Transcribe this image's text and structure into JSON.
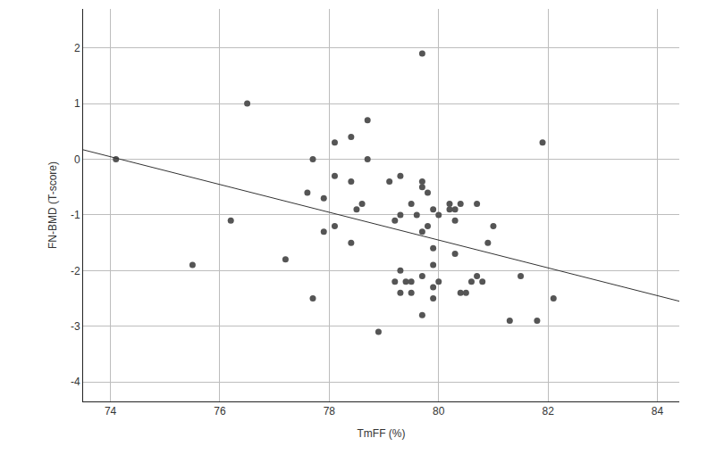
{
  "chart_data": {
    "type": "scatter",
    "x_label": "TmFF (%)",
    "y_label": "FN-BMD (T-score)",
    "xlim": [
      73.5,
      84.4
    ],
    "xticks": [
      74,
      76,
      78,
      80,
      82,
      84
    ],
    "ylim": [
      -4.35,
      2.7
    ],
    "yticks": [
      -4,
      -3,
      -2,
      -1,
      0,
      1,
      2
    ],
    "grid": true,
    "series": [
      {
        "type": "scatter",
        "marker": "circle",
        "color": "#555555",
        "x": [
          74.1,
          75.5,
          76.2,
          76.5,
          77.2,
          77.6,
          77.7,
          77.7,
          77.9,
          77.9,
          78.1,
          78.1,
          78.1,
          78.4,
          78.4,
          78.4,
          78.5,
          78.6,
          78.7,
          78.7,
          78.9,
          79.1,
          79.2,
          79.2,
          79.3,
          79.3,
          79.3,
          79.3,
          79.4,
          79.5,
          79.5,
          79.5,
          79.6,
          79.7,
          79.7,
          79.7,
          79.7,
          79.7,
          79.7,
          79.8,
          79.8,
          79.9,
          79.9,
          79.9,
          79.9,
          79.9,
          80.0,
          80.0,
          80.2,
          80.2,
          80.3,
          80.3,
          80.3,
          80.4,
          80.4,
          80.5,
          80.6,
          80.7,
          80.7,
          80.8,
          80.9,
          81.0,
          81.3,
          81.5,
          81.8,
          81.9,
          82.1
        ],
        "values": [
          0.0,
          -1.9,
          -1.1,
          1.0,
          -1.8,
          -0.6,
          0.0,
          -2.5,
          -0.7,
          -1.3,
          0.3,
          -0.3,
          -1.2,
          0.4,
          -0.4,
          -1.5,
          -0.9,
          -0.8,
          0.7,
          0.0,
          -3.1,
          -0.4,
          -1.1,
          -2.2,
          -0.3,
          -1.0,
          -2.0,
          -2.4,
          -2.2,
          -0.8,
          -2.2,
          -2.4,
          -1.0,
          1.9,
          -0.4,
          -0.5,
          -1.3,
          -2.1,
          -2.8,
          -0.6,
          -1.2,
          -0.9,
          -1.6,
          -1.9,
          -2.3,
          -2.5,
          -1.0,
          -2.2,
          -0.8,
          -0.9,
          -0.9,
          -1.1,
          -1.7,
          -0.8,
          -2.4,
          -2.4,
          -2.2,
          -0.8,
          -2.1,
          -2.2,
          -1.5,
          -1.2,
          -2.9,
          -2.1,
          -2.9,
          0.3,
          -2.5
        ]
      },
      {
        "type": "line",
        "line_style": "solid",
        "color": "#333333",
        "x": [
          73.5,
          84.4
        ],
        "values": [
          0.17,
          -2.55
        ]
      }
    ]
  }
}
